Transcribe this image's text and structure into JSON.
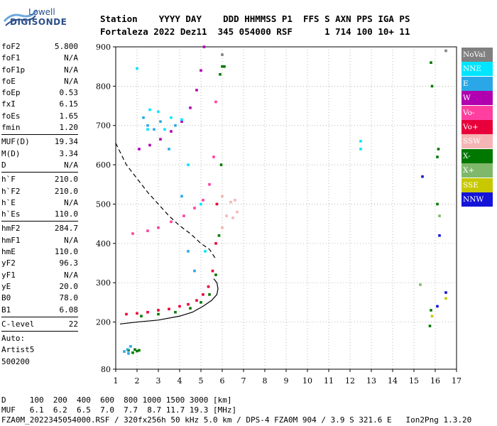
{
  "logo": {
    "line1": "Lowell",
    "line2": "DIGISONDE"
  },
  "header": {
    "line1": "Station    YYYY DAY    DDD HHMMSS P1  FFS S AXN PPS IGA PS",
    "line2": "Fortaleza 2022 Dez11  345 054000 RSF      1 714 100 10+ 11"
  },
  "params": [
    [
      {
        "k": "foF2",
        "v": "5.800"
      },
      {
        "k": "foF1",
        "v": "N/A"
      },
      {
        "k": "foF1p",
        "v": "N/A"
      },
      {
        "k": "foE",
        "v": "N/A"
      },
      {
        "k": "foEp",
        "v": "0.53"
      },
      {
        "k": "fxI",
        "v": "6.15"
      },
      {
        "k": "foEs",
        "v": "1.65"
      },
      {
        "k": "fmin",
        "v": "1.20"
      }
    ],
    [
      {
        "k": "MUF(D)",
        "v": "19.34"
      },
      {
        "k": "M(D)",
        "v": "3.34"
      },
      {
        "k": "D",
        "v": "N/A"
      }
    ],
    [
      {
        "k": "h`F",
        "v": "210.0"
      },
      {
        "k": "h`F2",
        "v": "210.0"
      },
      {
        "k": "h`E",
        "v": "N/A"
      },
      {
        "k": "h`Es",
        "v": "110.0"
      }
    ],
    [
      {
        "k": "hmF2",
        "v": "284.7"
      },
      {
        "k": "hmF1",
        "v": "N/A"
      },
      {
        "k": "hmE",
        "v": "110.0"
      },
      {
        "k": "yF2",
        "v": "96.3"
      },
      {
        "k": "yF1",
        "v": "N/A"
      },
      {
        "k": "yE",
        "v": "20.0"
      },
      {
        "k": "B0",
        "v": "78.0"
      },
      {
        "k": "B1",
        "v": "6.08"
      }
    ],
    [
      {
        "k": "C-level",
        "v": "22"
      }
    ],
    [
      {
        "k": "Auto:",
        "v": ""
      },
      {
        "k": "Artist5",
        "v": ""
      },
      {
        "k": "500200",
        "v": ""
      }
    ]
  ],
  "legend": [
    {
      "label": "NoVal",
      "color": "#808080"
    },
    {
      "label": "NNE",
      "color": "#00e5ff"
    },
    {
      "label": "E",
      "color": "#2aa7e6"
    },
    {
      "label": "W",
      "color": "#b000b0"
    },
    {
      "label": "Vo-",
      "color": "#ff3fa0"
    },
    {
      "label": "Vo+",
      "color": "#e8003a"
    },
    {
      "label": "SSW",
      "color": "#f5b5b5"
    },
    {
      "label": "X-",
      "color": "#007800"
    },
    {
      "label": "X+",
      "color": "#7fb86a"
    },
    {
      "label": "SSE",
      "color": "#c8c800"
    },
    {
      "label": "NNW",
      "color": "#1414d8"
    }
  ],
  "footer": {
    "line1": "D     100  200  400  600  800 1000 1500 3000 [km]",
    "line2": "MUF   6.1  6.2  6.5  7.0  7.7  8.7 11.7 19.3 [MHz]",
    "line3": "FZA0M_2022345054000.RSF / 320fx256h 50 kHz 5.0 km / DPS-4 FZA0M 904 / 3.9 S 321.6 E   Ion2Png 1.3.20"
  },
  "chart_data": {
    "type": "scatter",
    "title": "",
    "xlabel": "",
    "ylabel": "",
    "xlim": [
      1,
      17
    ],
    "ylim": [
      80,
      900
    ],
    "xticks": [
      1,
      2,
      3,
      4,
      5,
      6,
      7,
      8,
      9,
      10,
      11,
      12,
      13,
      14,
      15,
      16,
      17
    ],
    "yticks": [
      80,
      200,
      300,
      400,
      500,
      600,
      700,
      800,
      900
    ],
    "grid": "dashed",
    "legend": "right",
    "profile_solid": {
      "x": [
        1.2,
        2,
        3,
        4,
        4.6,
        5.1,
        5.5,
        5.75,
        5.8,
        5.75,
        5.6
      ],
      "y": [
        195,
        200,
        205,
        215,
        225,
        240,
        255,
        270,
        285,
        300,
        310
      ]
    },
    "profile_dashed": {
      "x": [
        1.0,
        1.5,
        2,
        2.5,
        3,
        3.5,
        4,
        4.5,
        5,
        5.4,
        5.7
      ],
      "y": [
        655,
        600,
        565,
        530,
        500,
        470,
        445,
        425,
        400,
        385,
        360
      ]
    },
    "traces": [
      {
        "series": "Vo+",
        "x": [
          1.5,
          2,
          2.5,
          3,
          3.5,
          4,
          4.4,
          4.8,
          5.1,
          5.35,
          5.55,
          5.7,
          5.75
        ],
        "y": [
          220,
          222,
          225,
          230,
          233,
          240,
          245,
          255,
          270,
          290,
          330,
          400,
          500
        ]
      },
      {
        "series": "X-",
        "x": [
          2.2,
          3,
          3.8,
          4.5,
          5,
          5.4,
          5.7,
          5.85,
          5.95,
          6.0
        ],
        "y": [
          215,
          220,
          225,
          235,
          250,
          270,
          320,
          420,
          600,
          850
        ]
      },
      {
        "series": "Vo-",
        "x": [
          1.8,
          2.5,
          3,
          3.6,
          4.2,
          4.7,
          5.1,
          5.4,
          5.6,
          5.7
        ],
        "y": [
          425,
          432,
          440,
          455,
          470,
          490,
          510,
          550,
          620,
          760
        ]
      },
      {
        "series": "W",
        "x": [
          2.1,
          2.6,
          3.1,
          3.6,
          4.1,
          4.5,
          4.8,
          5.0,
          5.15
        ],
        "y": [
          640,
          650,
          665,
          685,
          710,
          745,
          790,
          840,
          900
        ]
      },
      {
        "series": "E",
        "x": [
          2.3,
          2.5,
          2.8,
          3.1,
          3.5,
          3.8,
          4.1,
          4.4,
          4.7
        ],
        "y": [
          720,
          700,
          690,
          710,
          640,
          700,
          520,
          380,
          330
        ]
      },
      {
        "series": "NNE",
        "x": [
          2.5,
          2.6,
          3.0,
          3.3,
          3.6,
          4.1,
          4.4,
          5.0,
          5.2
        ],
        "y": [
          690,
          740,
          735,
          690,
          720,
          715,
          600,
          500,
          380
        ]
      },
      {
        "series": "SSW",
        "x": [
          6.0,
          6.2,
          6.4,
          6.5,
          6.6,
          6.7,
          6.0
        ],
        "y": [
          520,
          470,
          505,
          465,
          510,
          480,
          440
        ]
      },
      {
        "series": "X-",
        "x": [
          15.8,
          15.85,
          16.1,
          16.15,
          15.8,
          15.75,
          16.1
        ],
        "y": [
          860,
          800,
          620,
          640,
          230,
          190,
          500
        ]
      },
      {
        "series": "NNW",
        "x": [
          15.4,
          16.1,
          16.5,
          16.2
        ],
        "y": [
          570,
          240,
          275,
          420
        ]
      },
      {
        "series": "X+",
        "x": [
          15.3,
          16.2
        ],
        "y": [
          295,
          470
        ]
      },
      {
        "series": "SSE",
        "x": [
          16.5,
          15.85
        ],
        "y": [
          260,
          215
        ]
      },
      {
        "series": "NNE",
        "x": [
          12.5,
          12.5,
          2.0
        ],
        "y": [
          660,
          640,
          845
        ]
      },
      {
        "series": "X-",
        "x": [
          1.6,
          1.9,
          2.0,
          2.1,
          1.8,
          5.9,
          6.1
        ],
        "y": [
          128,
          130,
          126,
          128,
          122,
          830,
          850
        ]
      },
      {
        "series": "E",
        "x": [
          1.4,
          1.55,
          1.7,
          1.6
        ],
        "y": [
          125,
          130,
          138,
          120
        ]
      },
      {
        "series": "NoVal",
        "x": [
          6.0,
          16.5
        ],
        "y": [
          880,
          890
        ]
      }
    ]
  }
}
